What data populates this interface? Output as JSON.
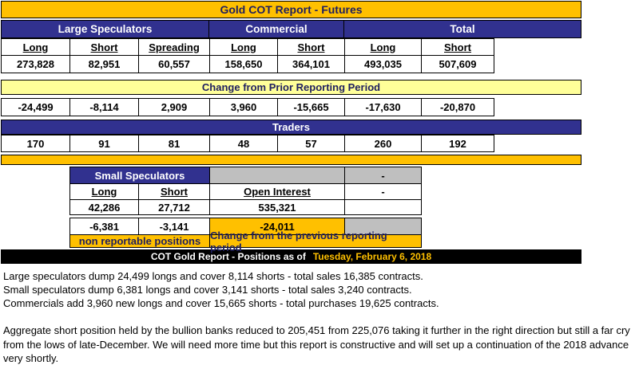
{
  "title": "Gold COT Report - Futures",
  "colors": {
    "gold": "#FFC000",
    "navy": "#31318F",
    "pale_yellow": "#FFFF99",
    "gray": "#BFBFBF",
    "title_text": "#1F1F5F"
  },
  "main_table": {
    "groups": [
      "Large Speculators",
      "Commercial",
      "Total"
    ],
    "column_headers": [
      "Long",
      "Short",
      "Spreading",
      "Long",
      "Short",
      "Long",
      "Short"
    ],
    "positions": [
      "273,828",
      "82,951",
      "60,557",
      "158,650",
      "364,101",
      "493,035",
      "507,609"
    ],
    "change_label": "Change from Prior Reporting Period",
    "changes": [
      "-24,499",
      "-8,114",
      "2,909",
      "3,960",
      "-15,665",
      "-17,630",
      "-20,870"
    ],
    "traders_label": "Traders",
    "traders": [
      "170",
      "91",
      "81",
      "48",
      "57",
      "260",
      "192"
    ]
  },
  "small_table": {
    "header": "Small Speculators",
    "column_headers": [
      "Long",
      "Short"
    ],
    "open_interest_label": "Open Interest",
    "dash_top": "-",
    "dash": "-",
    "positions": [
      "42,286",
      "27,712"
    ],
    "open_interest": "535,321",
    "changes": [
      "-6,381",
      "-3,141"
    ],
    "open_interest_change": "-24,011",
    "footnote_left": "non reportable positions",
    "footnote_right": "Change from the previous reporting period"
  },
  "footer_bar": {
    "label": "COT Gold Report - Positions as of",
    "date": "Tuesday, February 6, 2018"
  },
  "commentary": {
    "lines": [
      "Large speculators dump 24,499 longs and cover 8,114 shorts - total sales 16,385 contracts.",
      "Small speculators dump 6,381 longs and cover 3,141 shorts - total sales 3,240 contracts.",
      "Commercials add 3,960 new longs and cover 15,665 shorts - total purchases 19,625 contracts."
    ],
    "paragraph": "Aggregate short position held by the bullion banks reduced to 205,451 from 225,076 taking it further in the right direction but still a far cry from the lows of late-December. We will need more time but this report is constructive and will set up a continuation of the 2018 advance very shortly."
  }
}
